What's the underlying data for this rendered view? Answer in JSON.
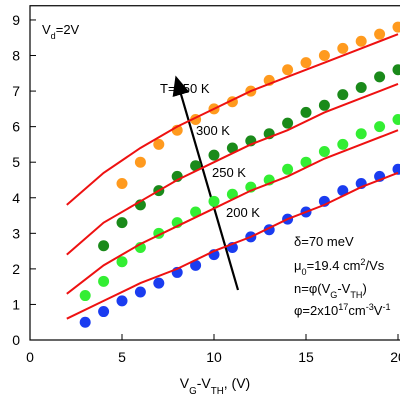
{
  "chart_data": {
    "type": "scatter",
    "x_label": [
      "V",
      {
        "sub": "G"
      },
      "-V",
      {
        "sub": "TH"
      },
      ", (V)"
    ],
    "xlim": [
      0,
      21
    ],
    "ylim": [
      0,
      9.4
    ],
    "xticks": [
      0,
      5,
      10,
      15,
      20
    ],
    "yticks": [
      0,
      1,
      2,
      3,
      4,
      5,
      6,
      7,
      8,
      9
    ],
    "series": [
      {
        "style": "marker",
        "color": "#ff9a1e",
        "x": [
          5,
          6,
          7,
          8,
          9,
          10,
          11,
          12,
          13,
          14,
          15,
          16,
          17,
          18,
          19,
          20
        ],
        "values": [
          4.4,
          5.0,
          5.5,
          5.9,
          6.2,
          6.5,
          6.7,
          7.0,
          7.3,
          7.6,
          7.8,
          8.0,
          8.2,
          8.4,
          8.6,
          8.8
        ]
      },
      {
        "style": "marker",
        "color": "#1a8a1a",
        "x": [
          4,
          5,
          6,
          7,
          8,
          9,
          10,
          11,
          12,
          13,
          14,
          15,
          16,
          17,
          18,
          19,
          20
        ],
        "values": [
          2.65,
          3.3,
          3.8,
          4.2,
          4.6,
          4.9,
          5.2,
          5.4,
          5.6,
          5.8,
          6.1,
          6.4,
          6.6,
          6.9,
          7.1,
          7.4,
          7.6
        ]
      },
      {
        "style": "marker",
        "color": "#33ee33",
        "x": [
          3,
          4,
          5,
          6,
          7,
          8,
          9,
          10,
          11,
          12,
          13,
          14,
          15,
          16,
          17,
          18,
          19,
          20
        ],
        "values": [
          1.25,
          1.65,
          2.2,
          2.6,
          3.0,
          3.3,
          3.6,
          3.9,
          4.1,
          4.3,
          4.5,
          4.8,
          5.0,
          5.3,
          5.5,
          5.8,
          6.0,
          6.2
        ]
      },
      {
        "style": "marker",
        "color": "#1a3cf0",
        "x": [
          3,
          4,
          5,
          6,
          7,
          8,
          9,
          10,
          11,
          12,
          13,
          14,
          15,
          16,
          17,
          18,
          19,
          20
        ],
        "values": [
          0.5,
          0.8,
          1.1,
          1.35,
          1.6,
          1.9,
          2.1,
          2.4,
          2.6,
          2.9,
          3.1,
          3.4,
          3.6,
          3.9,
          4.2,
          4.4,
          4.6,
          4.8
        ]
      },
      {
        "style": "line",
        "color": "#ee1111",
        "x": [
          2,
          4,
          6,
          8,
          10,
          12,
          14,
          16,
          18,
          20
        ],
        "values": [
          3.8,
          4.7,
          5.4,
          6.0,
          6.5,
          7.0,
          7.4,
          7.8,
          8.2,
          8.6
        ]
      },
      {
        "style": "line",
        "color": "#ee1111",
        "x": [
          2,
          4,
          6,
          8,
          10,
          12,
          14,
          16,
          18,
          20
        ],
        "values": [
          2.4,
          3.3,
          3.9,
          4.5,
          5.0,
          5.5,
          5.9,
          6.4,
          6.8,
          7.2
        ]
      },
      {
        "style": "line",
        "color": "#ee1111",
        "x": [
          2,
          4,
          6,
          8,
          10,
          12,
          14,
          16,
          18,
          20
        ],
        "values": [
          1.3,
          2.1,
          2.7,
          3.2,
          3.7,
          4.2,
          4.6,
          5.1,
          5.5,
          5.9
        ]
      },
      {
        "style": "line",
        "color": "#ee1111",
        "x": [
          2,
          4,
          6,
          8,
          10,
          12,
          14,
          16,
          18,
          20
        ],
        "values": [
          0.6,
          1.1,
          1.6,
          2.0,
          2.5,
          2.9,
          3.4,
          3.8,
          4.3,
          4.7
        ]
      }
    ],
    "annotations": [
      [
        "V",
        {
          "sub": "d"
        },
        "=2V"
      ],
      [
        "T=350 K"
      ],
      [
        "300 K"
      ],
      [
        "250 K"
      ],
      [
        "200 K"
      ],
      [
        "δ=70 meV"
      ],
      [
        "μ",
        {
          "sub": "0"
        },
        "=19.4 cm",
        {
          "sup": "2"
        },
        "/Vs"
      ],
      [
        "n=φ(V",
        {
          "sub": "G"
        },
        "-V",
        {
          "sub": "TH"
        },
        ")"
      ],
      [
        "φ=2x10",
        {
          "sup": "17"
        },
        "cm",
        {
          "sup": "-3"
        },
        "V",
        {
          "sup": "-1"
        }
      ]
    ]
  }
}
